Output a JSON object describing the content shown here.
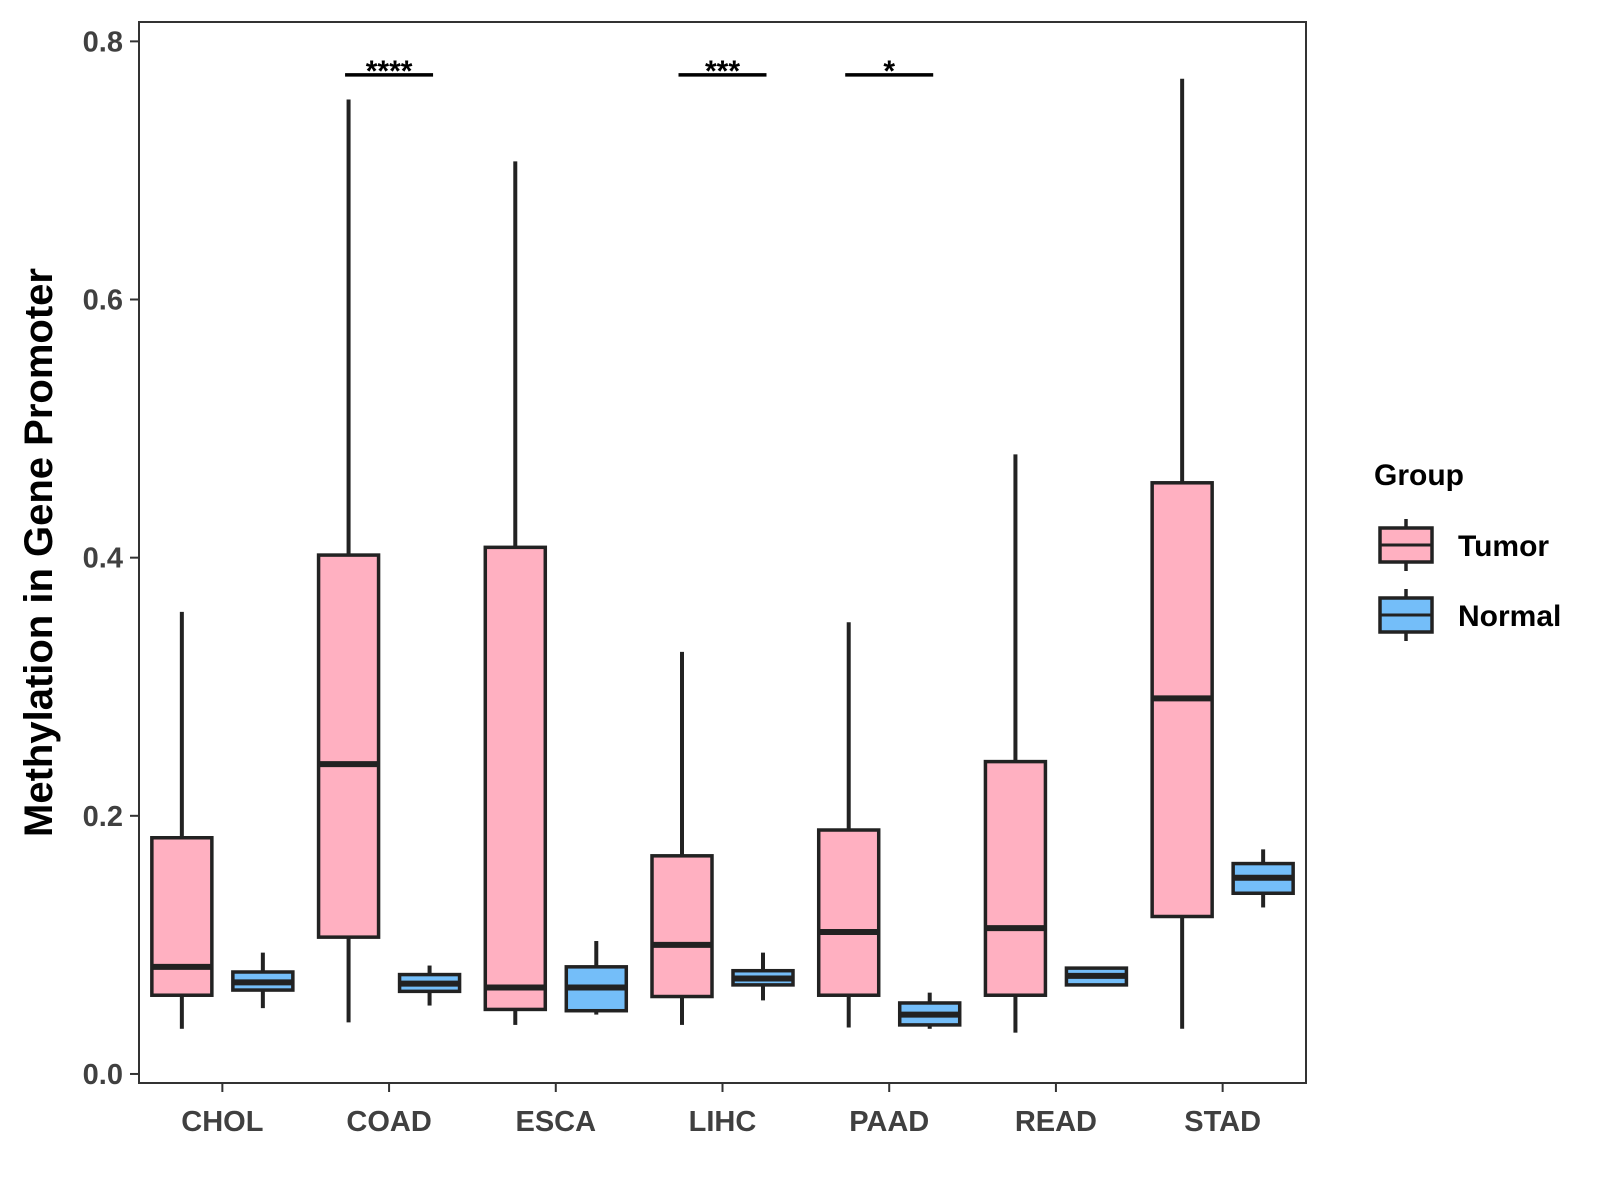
{
  "chart_data": {
    "type": "boxplot",
    "title": "",
    "xlabel": "",
    "ylabel": "Methylation in Gene Promoter",
    "ylim": [
      -0.007,
      0.815
    ],
    "yticks": [
      0.0,
      0.2,
      0.4,
      0.6,
      0.8
    ],
    "ytick_labels": [
      "0.0",
      "0.2",
      "0.4",
      "0.6",
      "0.8"
    ],
    "categories": [
      "CHOL",
      "COAD",
      "ESCA",
      "LIHC",
      "PAAD",
      "READ",
      "STAD"
    ],
    "legend": {
      "title": "Group",
      "position": "right",
      "entries": [
        "Tumor",
        "Normal"
      ]
    },
    "series": [
      {
        "name": "Tumor",
        "color": "#FFB0C1",
        "boxes": [
          {
            "min": 0.035,
            "q1": 0.061,
            "median": 0.083,
            "q3": 0.183,
            "max": 0.358
          },
          {
            "min": 0.04,
            "q1": 0.106,
            "median": 0.24,
            "q3": 0.402,
            "max": 0.755
          },
          {
            "min": 0.038,
            "q1": 0.05,
            "median": 0.067,
            "q3": 0.408,
            "max": 0.707
          },
          {
            "min": 0.038,
            "q1": 0.06,
            "median": 0.1,
            "q3": 0.169,
            "max": 0.327
          },
          {
            "min": 0.036,
            "q1": 0.061,
            "median": 0.11,
            "q3": 0.189,
            "max": 0.35
          },
          {
            "min": 0.032,
            "q1": 0.061,
            "median": 0.113,
            "q3": 0.242,
            "max": 0.48
          },
          {
            "min": 0.035,
            "q1": 0.122,
            "median": 0.291,
            "q3": 0.458,
            "max": 0.771
          }
        ]
      },
      {
        "name": "Normal",
        "color": "#74BEF9",
        "boxes": [
          {
            "min": 0.051,
            "q1": 0.065,
            "median": 0.071,
            "q3": 0.079,
            "max": 0.094
          },
          {
            "min": 0.053,
            "q1": 0.064,
            "median": 0.07,
            "q3": 0.077,
            "max": 0.084
          },
          {
            "min": 0.046,
            "q1": 0.049,
            "median": 0.067,
            "q3": 0.083,
            "max": 0.103
          },
          {
            "min": 0.057,
            "q1": 0.069,
            "median": 0.074,
            "q3": 0.08,
            "max": 0.094
          },
          {
            "min": 0.035,
            "q1": 0.038,
            "median": 0.046,
            "q3": 0.055,
            "max": 0.063
          },
          {
            "min": 0.068,
            "q1": 0.069,
            "median": 0.076,
            "q3": 0.082,
            "max": 0.082
          },
          {
            "min": 0.129,
            "q1": 0.14,
            "median": 0.152,
            "q3": 0.163,
            "max": 0.174
          }
        ]
      }
    ],
    "annotations": [
      {
        "category": "COAD",
        "label": "****",
        "y": 0.774
      },
      {
        "category": "LIHC",
        "label": "***",
        "y": 0.774
      },
      {
        "category": "PAAD",
        "label": "*",
        "y": 0.774
      }
    ]
  }
}
